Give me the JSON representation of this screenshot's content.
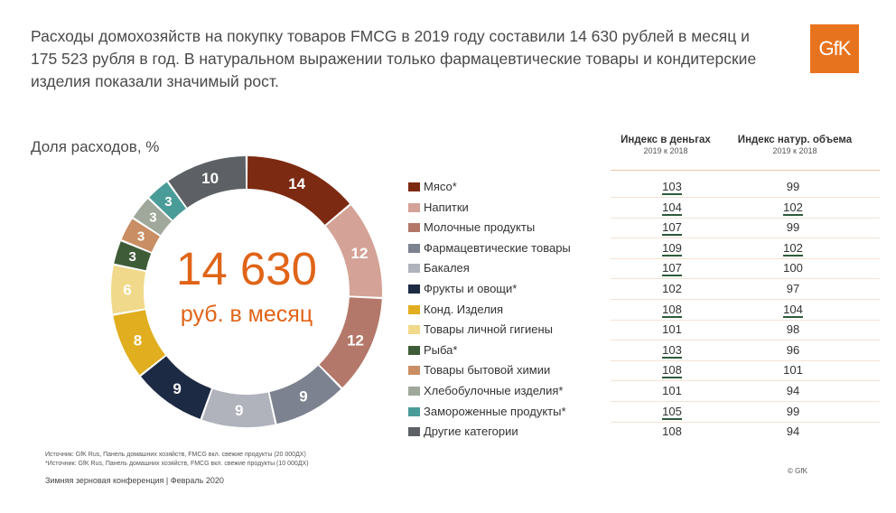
{
  "headline": "Расходы домохозяйств на покупку товаров FMCG в 2019 году составили 14 630 рублей в месяц и 175 523 рубля в год. В натуральном выражении только фармацевтические товары и кондитерские изделия показали значимый рост.",
  "logo": "GfK",
  "share_title": "Доля расходов, %",
  "center": {
    "value": "14 630",
    "unit": "руб. в месяц"
  },
  "columns": {
    "money": {
      "title": "Индекс в деньгах",
      "sub": "2019 к 2018"
    },
    "volume": {
      "title": "Индекс натур. объема",
      "sub": "2019 к 2018"
    }
  },
  "chart_data": {
    "type": "pie",
    "variant": "donut",
    "unit": "%",
    "categories": [
      "Мясо*",
      "Напитки",
      "Молочные продукты",
      "Фармацевтические товары",
      "Бакалея",
      "Фрукты и овощи*",
      "Конд. Изделия",
      "Товары личной гигиены",
      "Рыба*",
      "Товары бытовой химии",
      "Хлебобулочные изделия*",
      "Замороженные продукты*",
      "Другие категории"
    ],
    "values": [
      14,
      12,
      12,
      9,
      9,
      9,
      8,
      6,
      3,
      3,
      3,
      3,
      10
    ],
    "colors": [
      "#7d2a12",
      "#d4a296",
      "#b4786a",
      "#7d8290",
      "#b0b2bc",
      "#1d2a44",
      "#e0ae1e",
      "#f0d98a",
      "#3f5c38",
      "#c98e64",
      "#9fa89a",
      "#4a9c98",
      "#5d6064"
    ],
    "money_index": [
      103,
      104,
      107,
      109,
      107,
      102,
      108,
      101,
      103,
      108,
      101,
      105,
      108
    ],
    "volume_index": [
      99,
      102,
      99,
      102,
      100,
      97,
      104,
      98,
      96,
      101,
      94,
      99,
      94
    ],
    "money_underlined": [
      true,
      true,
      true,
      true,
      true,
      false,
      true,
      false,
      true,
      true,
      false,
      true,
      false
    ],
    "volume_underlined": [
      false,
      true,
      false,
      true,
      false,
      false,
      true,
      false,
      false,
      false,
      false,
      false,
      false
    ]
  },
  "footnotes": {
    "source1": "Источник: GfK Rus, Панель домашних хозяйств, FMCG вкл. свежие продукты (20 000ДХ)",
    "source2": "*Источник: GfK Rus, Панель домашних хозяйств, FMCG вкл. свежие продукты (10 000ДХ)",
    "conference": "Зимняя зерновая конференция | Февраль 2020",
    "copyright": "© GfK"
  }
}
